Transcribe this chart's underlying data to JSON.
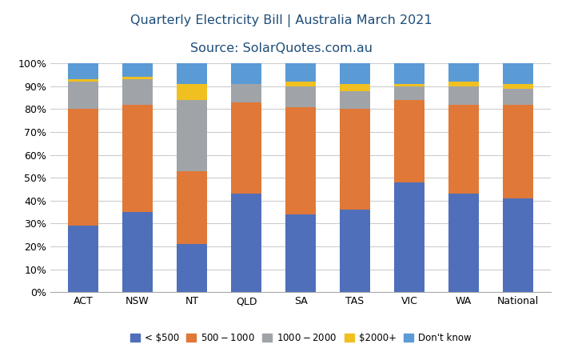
{
  "categories": [
    "ACT",
    "NSW",
    "NT",
    "QLD",
    "SA",
    "TAS",
    "VIC",
    "WA",
    "National"
  ],
  "series": {
    "< $500": [
      29,
      35,
      21,
      43,
      34,
      36,
      48,
      43,
      41
    ],
    "$500 - $1000": [
      51,
      47,
      32,
      40,
      47,
      44,
      36,
      39,
      41
    ],
    "$1000- $2000": [
      12,
      11,
      31,
      8,
      9,
      8,
      6,
      8,
      7
    ],
    "$2000+": [
      1,
      1,
      7,
      0,
      2,
      3,
      1,
      2,
      2
    ],
    "Don't know": [
      7,
      6,
      9,
      9,
      8,
      9,
      9,
      8,
      9
    ]
  },
  "colors": {
    "< $500": "#4F6FBA",
    "$500 - $1000": "#E07838",
    "$1000- $2000": "#A0A4A8",
    "$2000+": "#F0C020",
    "Don't know": "#5B9BD5"
  },
  "title_line1": "Quarterly Electricity Bill | Australia March 2021",
  "title_line2": "Source: SolarQuotes.com.au",
  "background_color": "#FFFFFF",
  "grid_color": "#CCCCCC",
  "title_color": "#1F4E79",
  "fig_width": 7.03,
  "fig_height": 4.4,
  "dpi": 100
}
